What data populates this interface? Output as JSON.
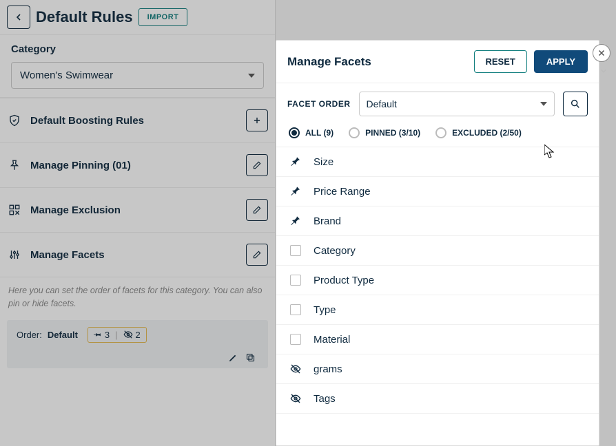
{
  "header": {
    "title": "Default Rules",
    "import_label": "IMPORT"
  },
  "category": {
    "label": "Category",
    "selected": "Women's Swimwear"
  },
  "rules": {
    "boosting": "Default Boosting Rules",
    "pinning": "Manage Pinning (01)",
    "exclusion": "Manage Exclusion",
    "facets": "Manage Facets"
  },
  "facets_section": {
    "helper": "Here you can set the order of facets for this category. You can also pin or hide facets.",
    "order_label": "Order:",
    "order_value": "Default",
    "pinned_count": "3",
    "hidden_count": "2"
  },
  "panel": {
    "title": "Manage Facets",
    "reset": "RESET",
    "apply": "APPLY",
    "facet_order_label": "FACET ORDER",
    "facet_order_value": "Default",
    "filters": {
      "all": "ALL (9)",
      "pinned": "PINNED (3/10)",
      "excluded": "EXCLUDED (2/50)"
    },
    "facets": [
      {
        "name": "Size",
        "state": "pinned"
      },
      {
        "name": "Price Range",
        "state": "pinned"
      },
      {
        "name": "Brand",
        "state": "pinned"
      },
      {
        "name": "Category",
        "state": "none"
      },
      {
        "name": "Product Type",
        "state": "none"
      },
      {
        "name": "Type",
        "state": "none"
      },
      {
        "name": "Material",
        "state": "none"
      },
      {
        "name": "grams",
        "state": "excluded"
      },
      {
        "name": "Tags",
        "state": "excluded"
      }
    ]
  },
  "colors": {
    "primary": "#104a7a",
    "teal": "#0f7d7d",
    "text": "#0f2a3f"
  }
}
